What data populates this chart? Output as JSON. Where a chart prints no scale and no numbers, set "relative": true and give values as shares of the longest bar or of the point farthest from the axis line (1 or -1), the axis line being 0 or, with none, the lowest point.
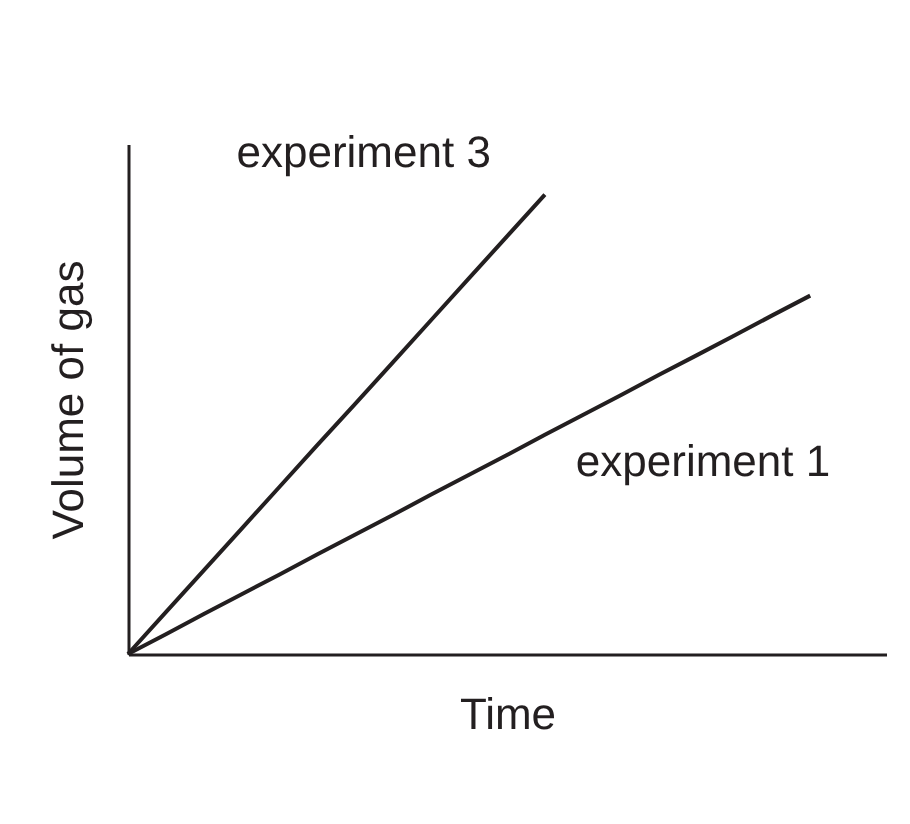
{
  "chart_data": {
    "type": "line",
    "relative": true,
    "xlabel": "Time",
    "ylabel": "Volume of gas",
    "categories": [
      null,
      null,
      null,
      null,
      null,
      null,
      null,
      null,
      null,
      null,
      null,
      null,
      null,
      null,
      null,
      null,
      null,
      null,
      null,
      null,
      null
    ],
    "series": [
      {
        "name": "experiment 3",
        "color": "#231f20",
        "values": [
          0,
          0.091,
          0.182,
          0.273,
          0.364,
          0.455,
          0.545,
          0.636,
          0.727,
          0.818,
          0.909,
          1,
          null,
          null,
          null,
          null,
          null,
          null,
          null,
          null,
          null
        ]
      },
      {
        "name": "experiment 1",
        "color": "#231f20",
        "values": [
          0,
          0.043,
          0.087,
          0.13,
          0.173,
          0.217,
          0.26,
          0.303,
          0.347,
          0.39,
          0.433,
          0.477,
          0.52,
          0.563,
          0.607,
          0.65,
          0.693,
          0.737,
          0.78,
          null,
          null
        ]
      }
    ],
    "grid": false,
    "tick_labels": false,
    "marker": "none",
    "line_style": "solid"
  }
}
